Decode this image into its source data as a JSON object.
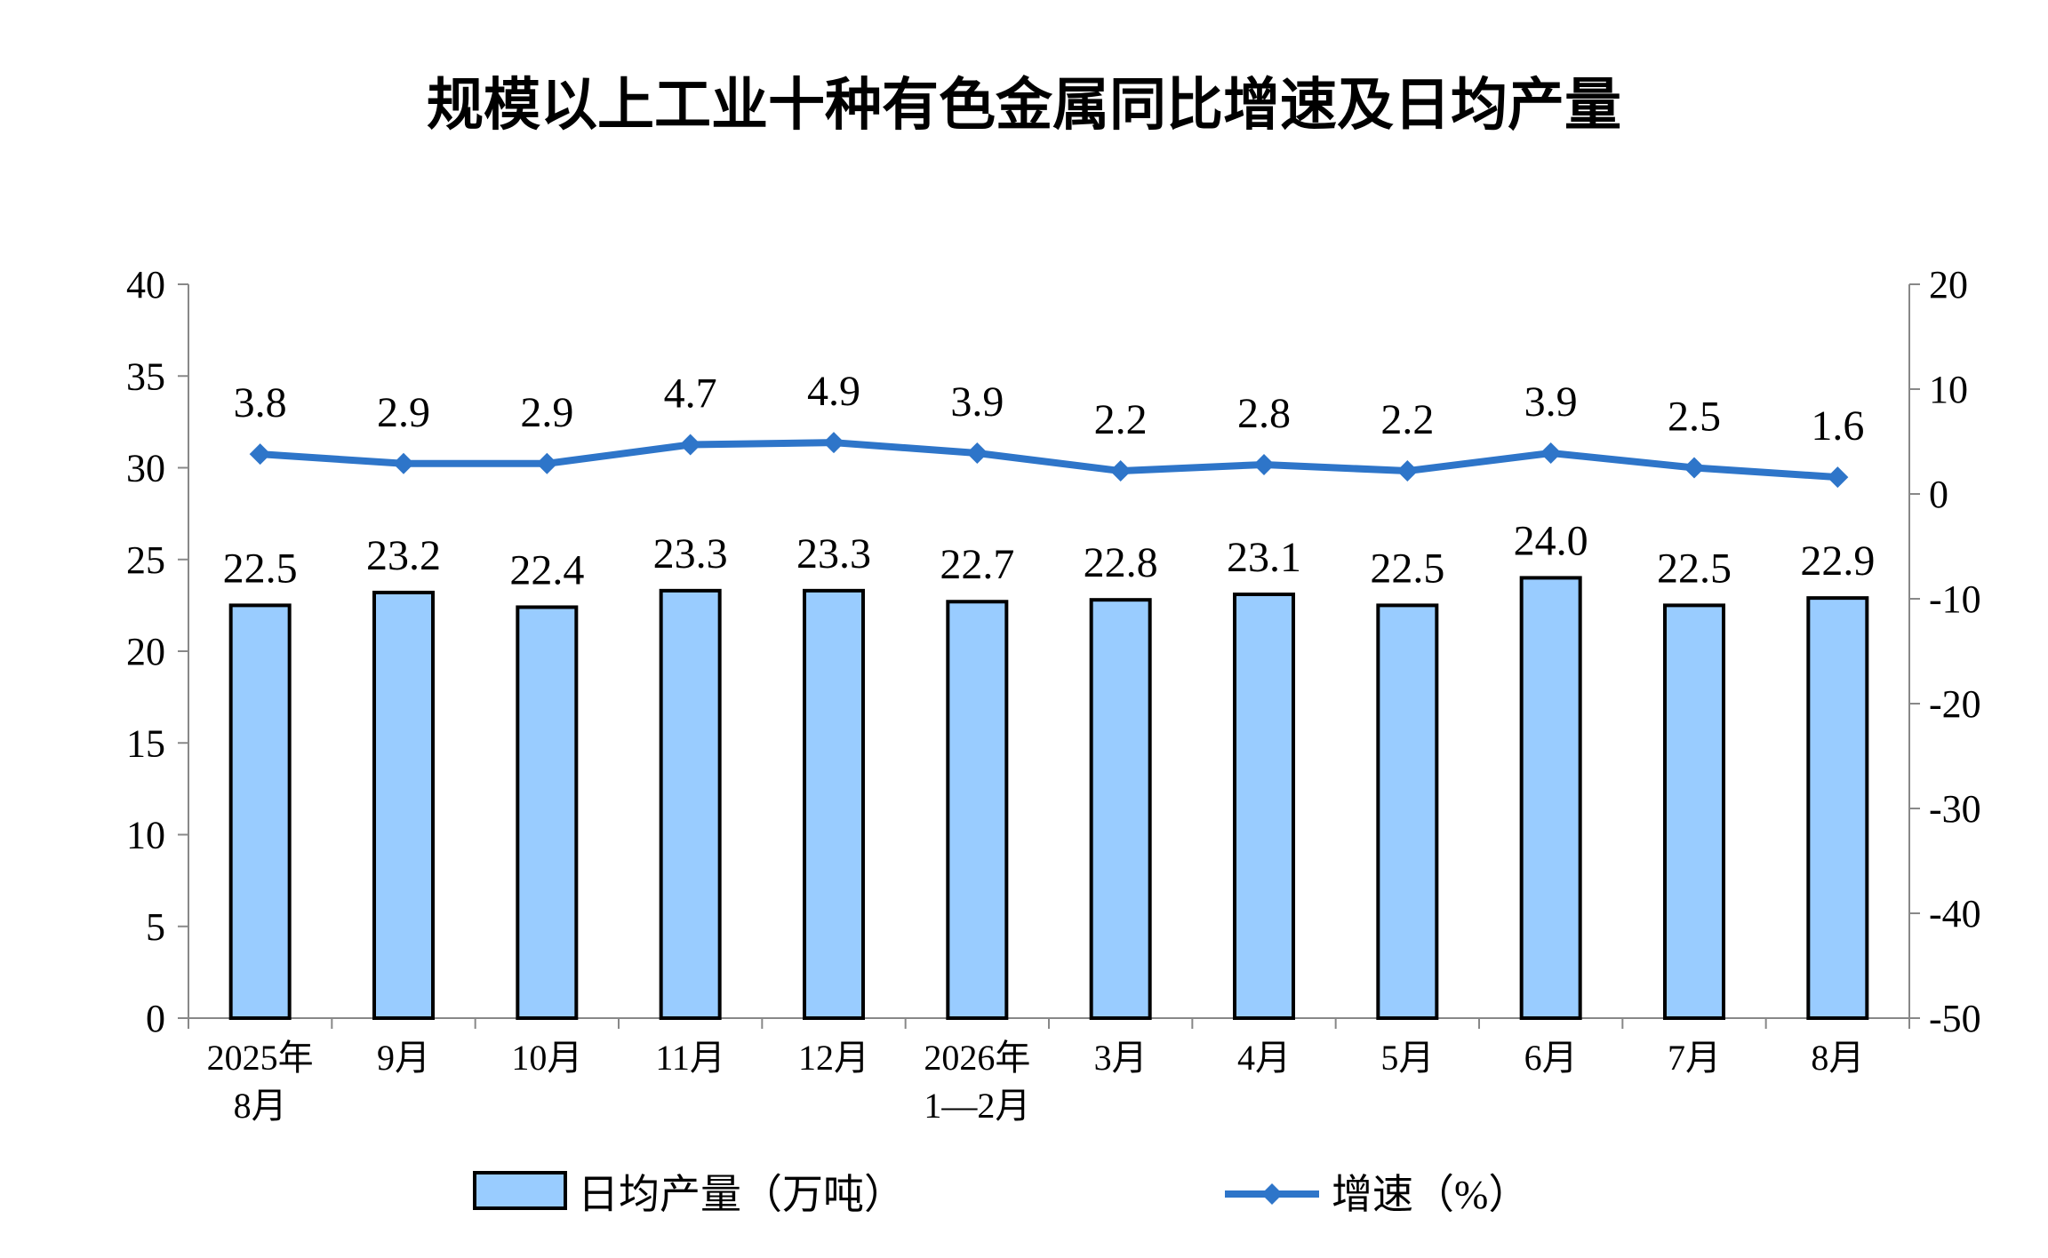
{
  "chart_data": {
    "type": "bar",
    "title": "规模以上工业十种有色金属同比增速及日均产量",
    "categories": [
      [
        "2025年",
        "8月"
      ],
      [
        "9月"
      ],
      [
        "10月"
      ],
      [
        "11月"
      ],
      [
        "12月"
      ],
      [
        "2026年",
        "1—2月"
      ],
      [
        "3月"
      ],
      [
        "4月"
      ],
      [
        "5月"
      ],
      [
        "6月"
      ],
      [
        "7月"
      ],
      [
        "8月"
      ]
    ],
    "series": [
      {
        "name": "日均产量（万吨）",
        "type": "bar",
        "axis": "left",
        "color": "#99CCFF",
        "values": [
          22.5,
          23.2,
          22.4,
          23.3,
          23.3,
          22.7,
          22.8,
          23.1,
          22.5,
          24.0,
          22.5,
          22.9
        ],
        "labels": [
          "22.5",
          "23.2",
          "22.4",
          "23.3",
          "23.3",
          "22.7",
          "22.8",
          "23.1",
          "22.5",
          "24.0",
          "22.5",
          "22.9"
        ]
      },
      {
        "name": "增速（%）",
        "type": "line",
        "axis": "right",
        "color": "#2E75C9",
        "values": [
          3.8,
          2.9,
          2.9,
          4.7,
          4.9,
          3.9,
          2.2,
          2.8,
          2.2,
          3.9,
          2.5,
          1.6
        ],
        "labels": [
          "3.8",
          "2.9",
          "2.9",
          "4.7",
          "4.9",
          "3.9",
          "2.2",
          "2.8",
          "2.2",
          "3.9",
          "2.5",
          "1.6"
        ]
      }
    ],
    "y_left": {
      "ylim": [
        0,
        40
      ],
      "ticks": [
        "0",
        "5",
        "10",
        "15",
        "20",
        "25",
        "30",
        "35",
        "40"
      ]
    },
    "y_right": {
      "ylim": [
        -50,
        20
      ],
      "ticks": [
        "-50",
        "-40",
        "-30",
        "-20",
        "-10",
        "0",
        "10",
        "20"
      ]
    },
    "grid": false,
    "legend": {
      "position": "bottom"
    }
  }
}
